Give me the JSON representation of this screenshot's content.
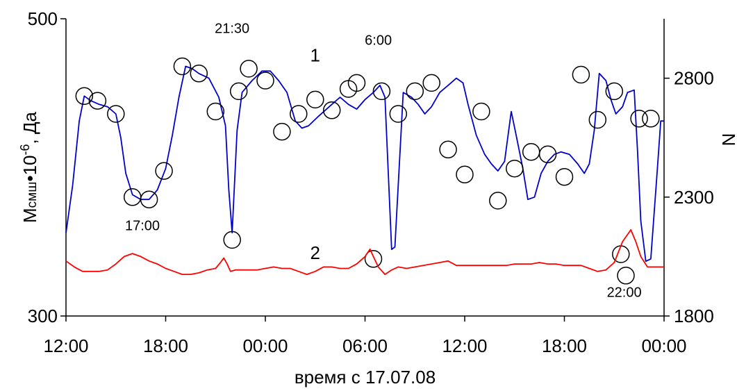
{
  "chart_data": {
    "type": "line",
    "xlabel": "время с 17.07.08",
    "ylabel_left": "Mсмш•10-6, Да",
    "ylabel_left_parts": {
      "main": "M",
      "sub": "смш",
      "mid": "•10",
      "sup": "-6",
      "unit": ", Да"
    },
    "ylabel_right": "N",
    "x_ticks": [
      "12:00",
      "18:00",
      "00:00",
      "06:00",
      "12:00",
      "18:00",
      "00:00"
    ],
    "xlim_hours": [
      0,
      36
    ],
    "ylim_left": [
      300,
      500
    ],
    "y_ticks_left": [
      "500",
      "300"
    ],
    "ylim_right": [
      1800,
      3050
    ],
    "y_ticks_right": [
      "2800",
      "2300",
      "1800"
    ],
    "grid": false,
    "series": [
      {
        "label": "1",
        "color": "#0000cc",
        "axis": "right",
        "points": [
          [
            0.0,
            2150
          ],
          [
            0.4,
            2350
          ],
          [
            0.8,
            2620
          ],
          [
            1.1,
            2725
          ],
          [
            1.5,
            2705
          ],
          [
            2.0,
            2690
          ],
          [
            2.5,
            2680
          ],
          [
            3.0,
            2650
          ],
          [
            3.3,
            2550
          ],
          [
            3.6,
            2400
          ],
          [
            4.0,
            2310
          ],
          [
            4.5,
            2290
          ],
          [
            5.0,
            2290
          ],
          [
            5.5,
            2330
          ],
          [
            6.0,
            2420
          ],
          [
            6.4,
            2560
          ],
          [
            6.8,
            2720
          ],
          [
            7.2,
            2850
          ],
          [
            7.6,
            2840
          ],
          [
            8.0,
            2820
          ],
          [
            8.6,
            2800
          ],
          [
            9.2,
            2720
          ],
          [
            9.6,
            2600
          ],
          [
            9.8,
            2330
          ],
          [
            10.0,
            2150
          ],
          [
            10.3,
            2580
          ],
          [
            10.6,
            2740
          ],
          [
            11.2,
            2790
          ],
          [
            11.8,
            2830
          ],
          [
            12.3,
            2830
          ],
          [
            12.8,
            2790
          ],
          [
            13.3,
            2740
          ],
          [
            13.8,
            2620
          ],
          [
            14.2,
            2590
          ],
          [
            14.6,
            2600
          ],
          [
            15.2,
            2640
          ],
          [
            16.0,
            2690
          ],
          [
            16.5,
            2720
          ],
          [
            17.0,
            2690
          ],
          [
            17.5,
            2670
          ],
          [
            18.0,
            2710
          ],
          [
            18.5,
            2740
          ],
          [
            18.9,
            2770
          ],
          [
            19.2,
            2720
          ],
          [
            19.4,
            2400
          ],
          [
            19.6,
            2080
          ],
          [
            19.8,
            2090
          ],
          [
            20.0,
            2350
          ],
          [
            20.3,
            2740
          ],
          [
            20.8,
            2720
          ],
          [
            21.2,
            2690
          ],
          [
            21.6,
            2650
          ],
          [
            22.0,
            2680
          ],
          [
            22.5,
            2740
          ],
          [
            23.0,
            2770
          ],
          [
            23.5,
            2800
          ],
          [
            23.9,
            2780
          ],
          [
            24.2,
            2690
          ],
          [
            24.7,
            2560
          ],
          [
            25.2,
            2480
          ],
          [
            25.6,
            2440
          ],
          [
            26.0,
            2410
          ],
          [
            26.4,
            2450
          ],
          [
            26.8,
            2660
          ],
          [
            27.1,
            2560
          ],
          [
            27.5,
            2420
          ],
          [
            27.8,
            2290
          ],
          [
            28.2,
            2300
          ],
          [
            28.6,
            2400
          ],
          [
            29.0,
            2450
          ],
          [
            29.4,
            2480
          ],
          [
            29.8,
            2490
          ],
          [
            30.3,
            2480
          ],
          [
            30.8,
            2440
          ],
          [
            31.2,
            2400
          ],
          [
            31.5,
            2440
          ],
          [
            31.8,
            2580
          ],
          [
            32.1,
            2820
          ],
          [
            32.5,
            2790
          ],
          [
            32.8,
            2710
          ],
          [
            33.1,
            2650
          ],
          [
            33.5,
            2680
          ],
          [
            33.8,
            2740
          ],
          [
            34.2,
            2750
          ],
          [
            34.4,
            2500
          ],
          [
            34.6,
            2200
          ],
          [
            34.9,
            2030
          ],
          [
            35.2,
            2040
          ],
          [
            35.6,
            2420
          ],
          [
            35.8,
            2620
          ],
          [
            36.0,
            2620
          ]
        ],
        "markers": [
          [
            1.1,
            2725
          ],
          [
            1.9,
            2705
          ],
          [
            3.0,
            2650
          ],
          [
            4.0,
            2300
          ],
          [
            5.0,
            2290
          ],
          [
            5.9,
            2410
          ],
          [
            7.0,
            2850
          ],
          [
            8.0,
            2820
          ],
          [
            9.0,
            2660
          ],
          [
            10.0,
            2120
          ],
          [
            10.4,
            2745
          ],
          [
            11.0,
            2840
          ],
          [
            12.0,
            2790
          ],
          [
            13.0,
            2575
          ],
          [
            14.0,
            2650
          ],
          [
            15.0,
            2710
          ],
          [
            16.0,
            2665
          ],
          [
            17.0,
            2755
          ],
          [
            17.5,
            2780
          ],
          [
            18.5,
            2040
          ],
          [
            19.0,
            2745
          ],
          [
            20.0,
            2650
          ],
          [
            21.0,
            2745
          ],
          [
            22.0,
            2780
          ],
          [
            23.0,
            2500
          ],
          [
            24.0,
            2395
          ],
          [
            25.0,
            2660
          ],
          [
            26.0,
            2285
          ],
          [
            27.0,
            2420
          ],
          [
            28.0,
            2490
          ],
          [
            29.0,
            2480
          ],
          [
            30.0,
            2385
          ],
          [
            31.0,
            2815
          ],
          [
            32.0,
            2625
          ],
          [
            33.0,
            2745
          ],
          [
            33.4,
            2060
          ],
          [
            33.7,
            1970
          ],
          [
            34.5,
            2630
          ],
          [
            35.2,
            2630
          ]
        ]
      },
      {
        "label": "2",
        "color": "#ff0000",
        "axis": "left",
        "points": [
          [
            0.0,
            337
          ],
          [
            0.5,
            333
          ],
          [
            1.0,
            330
          ],
          [
            1.5,
            330
          ],
          [
            2.0,
            330
          ],
          [
            2.5,
            331
          ],
          [
            3.0,
            335
          ],
          [
            3.5,
            340
          ],
          [
            4.0,
            342
          ],
          [
            4.5,
            340
          ],
          [
            5.0,
            337
          ],
          [
            5.5,
            335
          ],
          [
            6.0,
            332
          ],
          [
            6.5,
            330
          ],
          [
            7.0,
            328
          ],
          [
            7.5,
            328
          ],
          [
            8.0,
            329
          ],
          [
            8.5,
            331
          ],
          [
            9.0,
            332
          ],
          [
            9.3,
            336
          ],
          [
            9.5,
            339
          ],
          [
            9.7,
            335
          ],
          [
            9.9,
            330
          ],
          [
            10.2,
            331
          ],
          [
            10.5,
            331
          ],
          [
            11.0,
            331
          ],
          [
            11.5,
            331
          ],
          [
            12.0,
            332
          ],
          [
            12.5,
            333
          ],
          [
            13.0,
            332
          ],
          [
            13.5,
            332
          ],
          [
            14.0,
            330
          ],
          [
            14.5,
            328
          ],
          [
            15.0,
            330
          ],
          [
            15.5,
            333
          ],
          [
            16.0,
            333
          ],
          [
            16.5,
            332
          ],
          [
            17.0,
            332
          ],
          [
            17.5,
            335
          ],
          [
            18.0,
            340
          ],
          [
            18.3,
            345
          ],
          [
            18.5,
            340
          ],
          [
            18.8,
            333
          ],
          [
            19.2,
            328
          ],
          [
            19.6,
            331
          ],
          [
            20.0,
            333
          ],
          [
            20.5,
            332
          ],
          [
            21.0,
            333
          ],
          [
            21.5,
            334
          ],
          [
            22.0,
            335
          ],
          [
            22.5,
            336
          ],
          [
            23.0,
            337
          ],
          [
            23.5,
            334
          ],
          [
            24.0,
            334
          ],
          [
            24.5,
            334
          ],
          [
            25.0,
            334
          ],
          [
            25.5,
            334
          ],
          [
            26.0,
            334
          ],
          [
            26.5,
            334
          ],
          [
            27.0,
            335
          ],
          [
            27.5,
            335
          ],
          [
            28.0,
            335
          ],
          [
            28.5,
            336
          ],
          [
            29.0,
            335
          ],
          [
            29.5,
            335
          ],
          [
            30.0,
            334
          ],
          [
            30.5,
            334
          ],
          [
            31.0,
            334
          ],
          [
            31.5,
            332
          ],
          [
            32.0,
            330
          ],
          [
            32.5,
            331
          ],
          [
            33.0,
            336
          ],
          [
            33.5,
            350
          ],
          [
            34.0,
            358
          ],
          [
            34.3,
            350
          ],
          [
            34.6,
            340
          ],
          [
            35.0,
            333
          ],
          [
            35.5,
            333
          ],
          [
            36.0,
            333
          ]
        ]
      }
    ],
    "annotations": [
      {
        "text": "21:30",
        "x_hour": 10.0,
        "y_right": 2990,
        "size": "small"
      },
      {
        "text": "6:00",
        "x_hour": 18.8,
        "y_right": 2940,
        "size": "small"
      },
      {
        "text": "17:00",
        "x_hour": 4.6,
        "y_right": 2160,
        "size": "small"
      },
      {
        "text": "22:00",
        "x_hour": 33.6,
        "y_right": 1880,
        "size": "small"
      },
      {
        "text": "1",
        "x_hour": 15.0,
        "y_right": 2870,
        "size": "large"
      },
      {
        "text": "2",
        "x_hour": 15.0,
        "y_right": 2040,
        "size": "large"
      }
    ]
  }
}
